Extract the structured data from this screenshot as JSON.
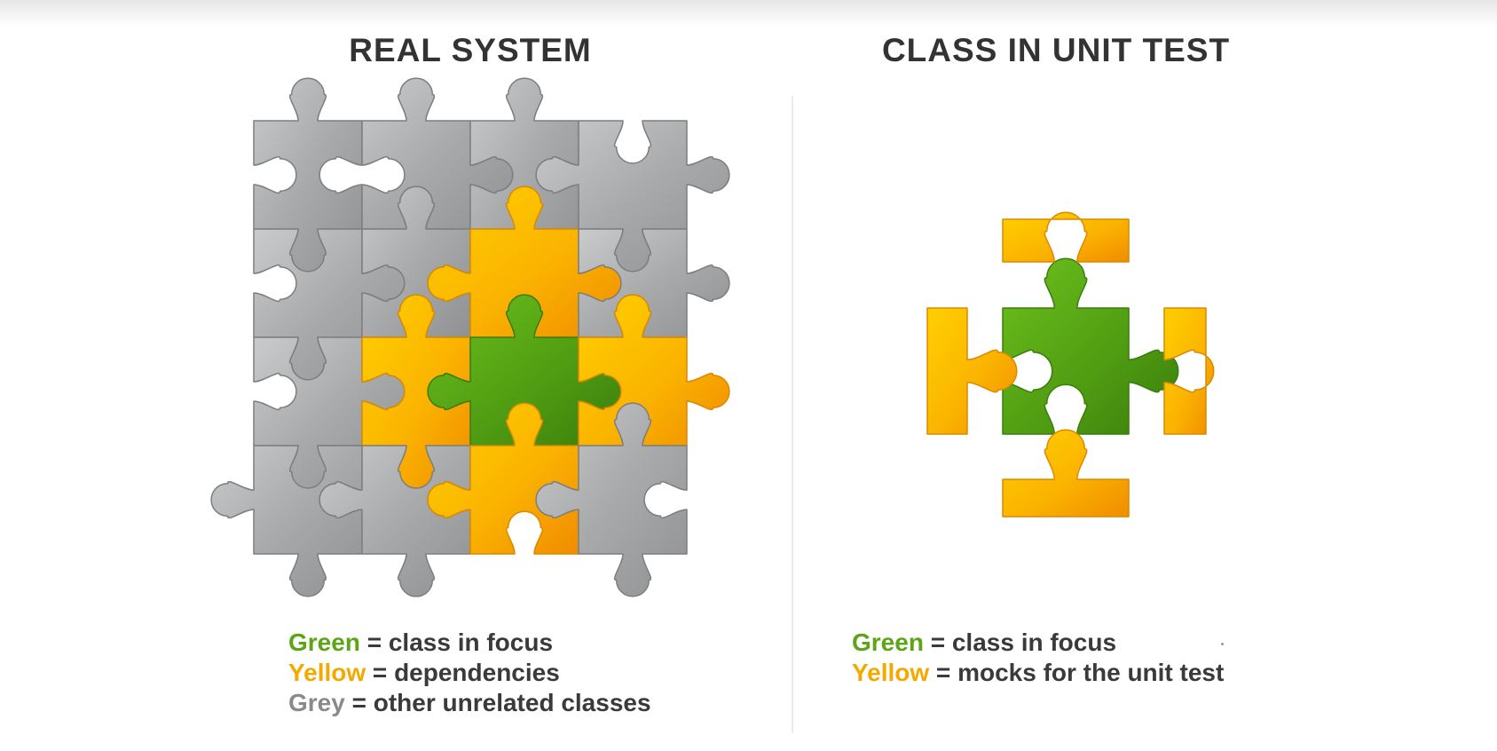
{
  "titles": {
    "left": "REAL SYSTEM",
    "right": "CLASS IN UNIT TEST"
  },
  "legend_left": [
    {
      "key": "Green",
      "text": " = class in focus",
      "color": "green"
    },
    {
      "key": "Yellow",
      "text": " = dependencies",
      "color": "yellow"
    },
    {
      "key": "Grey",
      "text": " = other unrelated classes",
      "color": "grey"
    }
  ],
  "legend_right": [
    {
      "key": "Green",
      "text": " = class in focus",
      "color": "green"
    },
    {
      "key": "Yellow",
      "text": " = mocks for the unit test",
      "color": "yellow"
    }
  ],
  "colors": {
    "green": "#5ba516",
    "yellow": "#f5a900",
    "grey": "#a9a9a9",
    "title": "#333333"
  },
  "grid": {
    "rows": [
      [
        "grey",
        "grey",
        "grey",
        "grey"
      ],
      [
        "grey",
        "grey",
        "yellow",
        "grey"
      ],
      [
        "grey",
        "yellow",
        "green",
        "yellow"
      ],
      [
        "grey",
        "grey",
        "yellow",
        "grey"
      ]
    ]
  }
}
